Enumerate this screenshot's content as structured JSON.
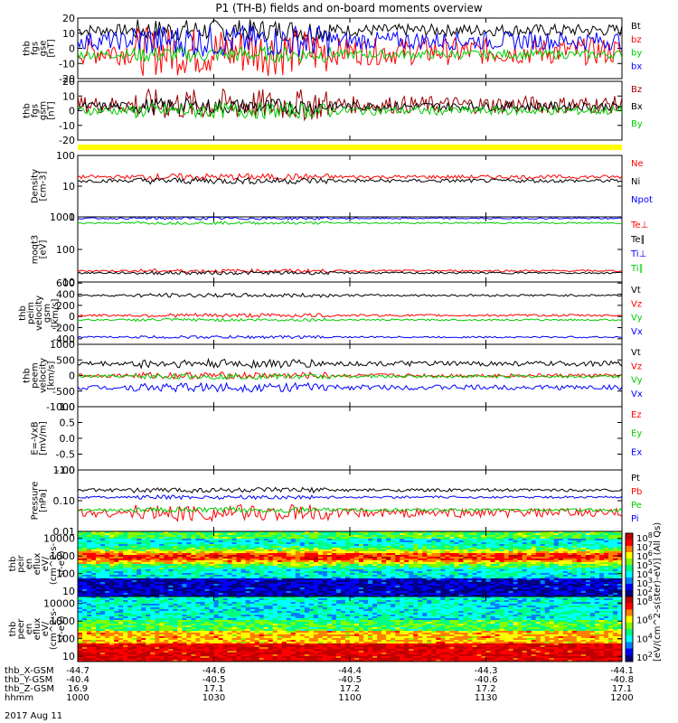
{
  "title": "P1 (TH-B) fields and on-board moments overview",
  "chart_data": [
    {
      "type": "line",
      "ylabel": [
        "thb",
        "fgs",
        "gse",
        "[nT]"
      ],
      "yticks": [
        "20",
        "10",
        "0",
        "-10",
        "-20"
      ],
      "ylim": [
        -20,
        20
      ],
      "series": [
        {
          "name": "Bt",
          "color": "#000000",
          "level": 12,
          "noise": 4
        },
        {
          "name": "bz",
          "color": "#ff0000",
          "level": -2,
          "noise": 9
        },
        {
          "name": "by",
          "color": "#00cc00",
          "level": -4,
          "noise": 3
        },
        {
          "name": "bx",
          "color": "#0000ff",
          "level": 5,
          "noise": 6
        }
      ]
    },
    {
      "type": "line",
      "ylabel": [
        "thb",
        "fgs",
        "gsm",
        "[nT]"
      ],
      "yticks": [
        "20",
        "10",
        "0",
        "-10",
        "-20"
      ],
      "ylim": [
        -20,
        20
      ],
      "series": [
        {
          "name": "Bz",
          "color": "#990000",
          "level": 4,
          "noise": 6
        },
        {
          "name": "Bx",
          "color": "#000000",
          "level": 3,
          "noise": 3
        },
        {
          "name": "By",
          "color": "#00cc00",
          "level": 0,
          "noise": 3
        }
      ]
    },
    {
      "type": "line",
      "ylabel": [
        "Density",
        "[cm-3]"
      ],
      "yticks": [
        "100",
        "10",
        "1"
      ],
      "ylim": [
        1,
        100
      ],
      "scale": "log",
      "series": [
        {
          "name": "Ne",
          "color": "#ff0000",
          "level": 20,
          "noise": 0.1
        },
        {
          "name": "Ni",
          "color": "#000000",
          "level": 15,
          "noise": 0.1
        },
        {
          "name": "Npot",
          "color": "#0000ff",
          "level": null,
          "noise": 0
        }
      ]
    },
    {
      "type": "line",
      "ylabel": [
        "moqt3",
        "[eV]"
      ],
      "yticks": [
        "1000",
        "100",
        "10"
      ],
      "ylim": [
        10,
        1000
      ],
      "scale": "log",
      "series": [
        {
          "name": "Te⊥",
          "color": "#ff0000",
          "level": 22,
          "noise": 0.05
        },
        {
          "name": "Te∥",
          "color": "#000000",
          "level": 19,
          "noise": 0.05
        },
        {
          "name": "Ti⊥",
          "color": "#0000ff",
          "level": 900,
          "noise": 0.04
        },
        {
          "name": "Ti∥",
          "color": "#00cc00",
          "level": 650,
          "noise": 0.04
        }
      ]
    },
    {
      "type": "line",
      "ylabel": [
        "thb",
        "peim",
        "velocity",
        "gsm",
        "[km/s]"
      ],
      "yticks": [
        "600",
        "400",
        "200",
        "0",
        "-200",
        "-400"
      ],
      "ylim": [
        -500,
        620
      ],
      "series": [
        {
          "name": "Vt",
          "color": "#000000",
          "level": 380,
          "noise": 20
        },
        {
          "name": "Vz",
          "color": "#ff0000",
          "level": 20,
          "noise": 20
        },
        {
          "name": "Vy",
          "color": "#00cc00",
          "level": -60,
          "noise": 15
        },
        {
          "name": "Vx",
          "color": "#0000ff",
          "level": -370,
          "noise": 15
        }
      ]
    },
    {
      "type": "line",
      "ylabel": [
        "thb",
        "peem",
        "velocity",
        "[km/s]"
      ],
      "yticks": [
        "1000",
        "500",
        "0",
        "-500",
        "-1000"
      ],
      "ylim": [
        -1000,
        1000
      ],
      "series": [
        {
          "name": "Vt",
          "color": "#000000",
          "level": 380,
          "noise": 80
        },
        {
          "name": "Vz",
          "color": "#ff0000",
          "level": 0,
          "noise": 60
        },
        {
          "name": "Vy",
          "color": "#00cc00",
          "level": -30,
          "noise": 50
        },
        {
          "name": "Vx",
          "color": "#0000ff",
          "level": -380,
          "noise": 80
        }
      ]
    },
    {
      "type": "line",
      "ylabel": [
        "E=-VxB",
        "[mV/m]"
      ],
      "yticks": [
        "1.0",
        "0.5",
        "0.0",
        "-0.5",
        "-1.0"
      ],
      "ylim": [
        -1,
        1
      ],
      "series": [
        {
          "name": "Ez",
          "color": "#ff0000",
          "level": null,
          "noise": 0
        },
        {
          "name": "Ey",
          "color": "#00cc00",
          "level": null,
          "noise": 0
        },
        {
          "name": "Ex",
          "color": "#0000ff",
          "level": null,
          "noise": 0
        }
      ]
    },
    {
      "type": "line",
      "ylabel": [
        "Pressure",
        "[nPa]"
      ],
      "yticks": [
        "1.00",
        "0.10",
        "0.01"
      ],
      "ylim": [
        0.01,
        1.0
      ],
      "scale": "log",
      "series": [
        {
          "name": "Pt",
          "color": "#000000",
          "level": 0.22,
          "noise": 0.08
        },
        {
          "name": "Pb",
          "color": "#ff0000",
          "level": 0.04,
          "noise": 0.25
        },
        {
          "name": "Pe",
          "color": "#00cc00",
          "level": 0.05,
          "noise": 0.08
        },
        {
          "name": "Pi",
          "color": "#0000ff",
          "level": 0.13,
          "noise": 0.06
        }
      ]
    },
    {
      "type": "heatmap",
      "ylabel": [
        "thb",
        "peir",
        "en",
        "eflux",
        "eV/",
        "(cm^2-s-",
        "sr-eV)"
      ],
      "yticks": [
        "10000",
        "1000",
        "100",
        "10"
      ],
      "ylim": [
        5,
        25000
      ],
      "scale": "log"
    },
    {
      "type": "heatmap",
      "ylabel": [
        "thb",
        "peer",
        "en",
        "eflux",
        "eV/",
        "(cm^2-s-",
        "sr-eV)"
      ],
      "yticks": [
        "10000",
        "1000",
        "100",
        "10"
      ],
      "ylim": [
        5,
        25000
      ],
      "scale": "log"
    }
  ],
  "colorbars": [
    {
      "ticks": [
        "10^8",
        "10^7",
        "10^6",
        "10^5",
        "10^4",
        "10^3",
        "10^2"
      ],
      "label": "[eV/(cm^2-s(ster)-eV)] (All Qs)"
    },
    {
      "ticks": [
        "10^8",
        "10^6",
        "10^4",
        "10^2"
      ],
      "label": "[eV/(cm^2-s-sr-eV)]"
    }
  ],
  "xaxis": {
    "rows": [
      {
        "label": "thb_X-GSM",
        "values": [
          "-44.7",
          "-44.6",
          "-44.4",
          "-44.3",
          "-44.1"
        ]
      },
      {
        "label": "thb_Y-GSM",
        "values": [
          "-40.4",
          "-40.5",
          "-40.5",
          "-40.6",
          "-40.8"
        ]
      },
      {
        "label": "thb_Z-GSM",
        "values": [
          "16.9",
          "17.1",
          "17.2",
          "17.2",
          "17.1"
        ]
      },
      {
        "label": "hhmm",
        "values": [
          "1000",
          "1030",
          "1100",
          "1130",
          "1200"
        ]
      }
    ],
    "date": "2017 Aug 11"
  },
  "colors": {
    "flag_bar": "#ffff00"
  }
}
